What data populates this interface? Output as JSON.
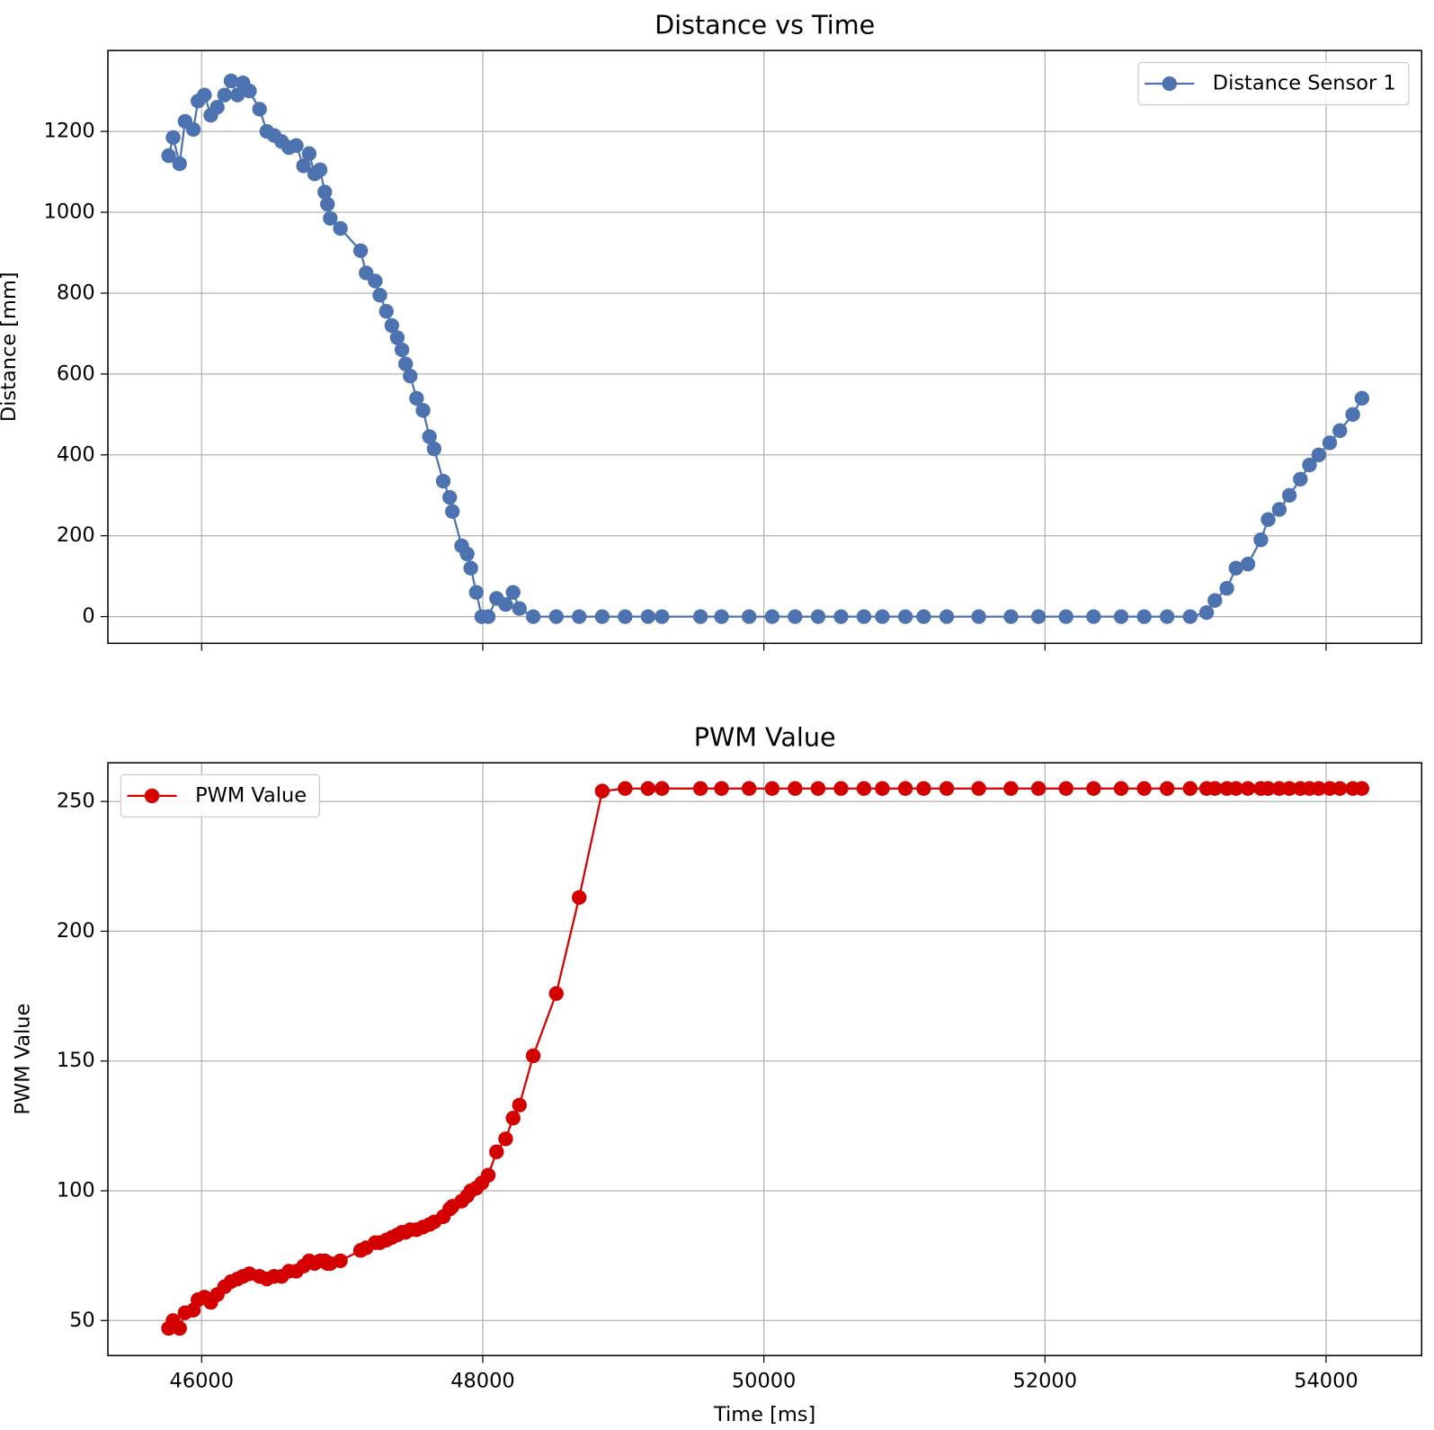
{
  "chart_data": [
    {
      "type": "line",
      "title": "Distance vs Time",
      "ylabel": "Distance [mm]",
      "legend": "upper right",
      "grid": true,
      "x": [
        45765,
        45797,
        45843,
        45882,
        45941,
        45974,
        46020,
        46065,
        46111,
        46163,
        46209,
        46255,
        46294,
        46340,
        46412,
        46464,
        46516,
        46569,
        46621,
        46673,
        46725,
        46765,
        46804,
        46843,
        46876,
        46895,
        46915,
        46987,
        47131,
        47170,
        47235,
        47268,
        47314,
        47353,
        47392,
        47425,
        47451,
        47484,
        47529,
        47575,
        47621,
        47654,
        47719,
        47765,
        47784,
        47850,
        47889,
        47915,
        47954,
        47993,
        48039,
        48098,
        48163,
        48216,
        48261,
        48359,
        48523,
        48686,
        48850,
        49013,
        49176,
        49275,
        49549,
        49699,
        49895,
        50059,
        50222,
        50386,
        50549,
        50712,
        50843,
        51007,
        51137,
        51301,
        51529,
        51758,
        51954,
        52150,
        52346,
        52542,
        52706,
        52869,
        53033,
        53150,
        53209,
        53294,
        53359,
        53444,
        53536,
        53588,
        53667,
        53739,
        53817,
        53882,
        53948,
        54026,
        54098,
        54190,
        54255
      ],
      "series": [
        {
          "name": "Distance Sensor 1",
          "color": "#4c72b0",
          "values": [
            1140,
            1185,
            1120,
            1225,
            1205,
            1275,
            1290,
            1240,
            1260,
            1290,
            1325,
            1290,
            1320,
            1300,
            1255,
            1200,
            1190,
            1175,
            1160,
            1165,
            1115,
            1145,
            1095,
            1105,
            1050,
            1020,
            985,
            960,
            905,
            850,
            830,
            795,
            755,
            720,
            690,
            660,
            625,
            595,
            540,
            510,
            445,
            415,
            335,
            295,
            260,
            175,
            155,
            120,
            60,
            0,
            0,
            45,
            30,
            60,
            20,
            0,
            0,
            0,
            0,
            0,
            0,
            0,
            0,
            0,
            0,
            0,
            0,
            0,
            0,
            0,
            0,
            0,
            0,
            0,
            0,
            0,
            0,
            0,
            0,
            0,
            0,
            0,
            0,
            10,
            40,
            70,
            120,
            130,
            190,
            240,
            265,
            300,
            340,
            375,
            400,
            430,
            460,
            500,
            540
          ]
        }
      ],
      "xlim": [
        45333,
        54680
      ],
      "xticks": [
        46000,
        48000,
        50000,
        52000,
        54000
      ],
      "ylim": [
        -66,
        1400
      ],
      "yticks": [
        0,
        200,
        400,
        600,
        800,
        1000,
        1200
      ]
    },
    {
      "type": "line",
      "title": "PWM Value",
      "xlabel": "Time [ms]",
      "ylabel": "PWM Value",
      "legend": "upper left",
      "grid": true,
      "x": [
        45765,
        45797,
        45843,
        45882,
        45941,
        45974,
        46020,
        46065,
        46111,
        46163,
        46209,
        46255,
        46294,
        46340,
        46412,
        46464,
        46516,
        46569,
        46621,
        46673,
        46725,
        46765,
        46804,
        46843,
        46876,
        46895,
        46915,
        46987,
        47131,
        47170,
        47235,
        47268,
        47314,
        47353,
        47392,
        47425,
        47451,
        47484,
        47529,
        47575,
        47621,
        47654,
        47719,
        47765,
        47784,
        47850,
        47889,
        47915,
        47954,
        47993,
        48039,
        48098,
        48163,
        48216,
        48261,
        48359,
        48523,
        48686,
        48850,
        49013,
        49176,
        49275,
        49549,
        49699,
        49895,
        50059,
        50222,
        50386,
        50549,
        50712,
        50843,
        51007,
        51137,
        51301,
        51529,
        51758,
        51954,
        52150,
        52346,
        52542,
        52706,
        52869,
        53033,
        53150,
        53209,
        53294,
        53359,
        53444,
        53536,
        53588,
        53667,
        53739,
        53817,
        53882,
        53948,
        54026,
        54098,
        54190,
        54255
      ],
      "series": [
        {
          "name": "PWM Value",
          "color": "#d40000",
          "values": [
            47,
            50,
            47,
            53,
            54,
            58,
            59,
            57,
            60,
            63,
            65,
            66,
            67,
            68,
            67,
            66,
            67,
            67,
            69,
            69,
            71,
            73,
            72,
            73,
            73,
            72,
            72,
            73,
            77,
            78,
            80,
            80,
            81,
            82,
            83,
            84,
            84,
            85,
            85,
            86,
            87,
            88,
            90,
            93,
            94,
            96,
            98,
            100,
            101,
            103,
            106,
            115,
            120,
            128,
            133,
            152,
            176,
            213,
            254,
            255,
            255,
            255,
            255,
            255,
            255,
            255,
            255,
            255,
            255,
            255,
            255,
            255,
            255,
            255,
            255,
            255,
            255,
            255,
            255,
            255,
            255,
            255,
            255,
            255,
            255,
            255,
            255,
            255,
            255,
            255,
            255,
            255,
            255,
            255,
            255,
            255,
            255,
            255,
            255
          ]
        }
      ],
      "xlim": [
        45333,
        54680
      ],
      "xticks": [
        46000,
        48000,
        50000,
        52000,
        54000
      ],
      "ylim": [
        36.5,
        264.9
      ],
      "yticks": [
        50,
        100,
        150,
        200,
        250
      ]
    }
  ]
}
